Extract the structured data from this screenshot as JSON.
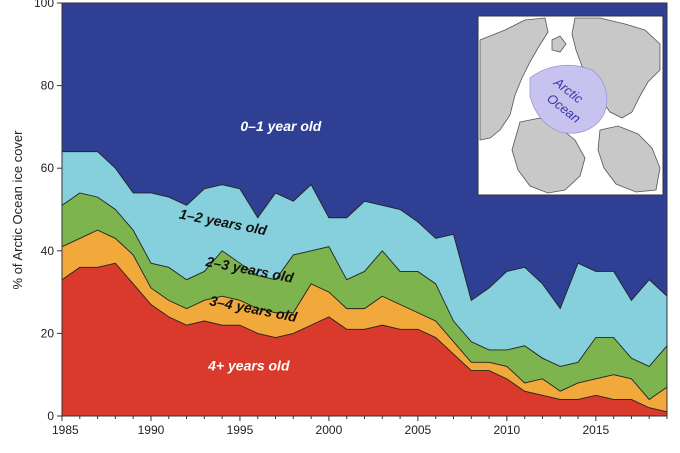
{
  "chart_data": {
    "type": "area",
    "stacked": true,
    "title": "",
    "xlabel": "",
    "ylabel": "% of Arctic Ocean ice cover",
    "xlim": [
      1985,
      2019
    ],
    "ylim": [
      0,
      100
    ],
    "xticks": [
      1985,
      1990,
      1995,
      2000,
      2005,
      2010,
      2015
    ],
    "yticks": [
      0,
      20,
      40,
      60,
      80,
      100
    ],
    "grid": false,
    "x": [
      1985,
      1986,
      1987,
      1988,
      1989,
      1990,
      1991,
      1992,
      1993,
      1994,
      1995,
      1996,
      1997,
      1998,
      1999,
      2000,
      2001,
      2002,
      2003,
      2004,
      2005,
      2006,
      2007,
      2008,
      2009,
      2010,
      2011,
      2012,
      2013,
      2014,
      2015,
      2016,
      2017,
      2018,
      2019
    ],
    "series": [
      {
        "name": "4+ years old",
        "color": "#d93a2b",
        "values": [
          33,
          36,
          36,
          37,
          32,
          27,
          24,
          22,
          23,
          22,
          22,
          20,
          19,
          20,
          22,
          24,
          21,
          21,
          22,
          21,
          21,
          19,
          15,
          11,
          11,
          9,
          6,
          5,
          4,
          4,
          5,
          4,
          4,
          2,
          1
        ]
      },
      {
        "name": "3–4 years old",
        "color": "#f2a93b",
        "values": [
          8,
          7,
          9,
          6,
          7,
          4,
          4,
          4,
          5,
          7,
          6,
          6,
          6,
          5,
          10,
          6,
          5,
          5,
          7,
          6,
          4,
          4,
          3,
          2,
          2,
          3,
          2,
          4,
          2,
          4,
          4,
          6,
          5,
          2,
          6
        ]
      },
      {
        "name": "2–3 years old",
        "color": "#7db44d",
        "values": [
          10,
          11,
          8,
          7,
          6,
          6,
          8,
          7,
          7,
          11,
          9,
          8,
          8,
          14,
          8,
          11,
          7,
          9,
          11,
          8,
          10,
          9,
          5,
          5,
          3,
          4,
          9,
          5,
          6,
          5,
          10,
          9,
          5,
          8,
          10
        ]
      },
      {
        "name": "1–2 years old",
        "color": "#86cfdc",
        "values": [
          13,
          10,
          11,
          10,
          9,
          17,
          17,
          18,
          20,
          16,
          18,
          14,
          21,
          13,
          16,
          7,
          15,
          17,
          11,
          15,
          12,
          11,
          21,
          10,
          15,
          19,
          19,
          18,
          14,
          24,
          16,
          16,
          14,
          21,
          12
        ]
      },
      {
        "name": "0–1 year old",
        "color": "#2f3f94",
        "values": [
          36,
          36,
          36,
          40,
          46,
          46,
          47,
          49,
          45,
          44,
          45,
          52,
          46,
          48,
          44,
          52,
          52,
          48,
          49,
          50,
          53,
          57,
          56,
          72,
          69,
          65,
          64,
          68,
          74,
          63,
          65,
          65,
          72,
          67,
          71
        ]
      }
    ],
    "inset_map": {
      "label": "Arctic Ocean"
    }
  }
}
